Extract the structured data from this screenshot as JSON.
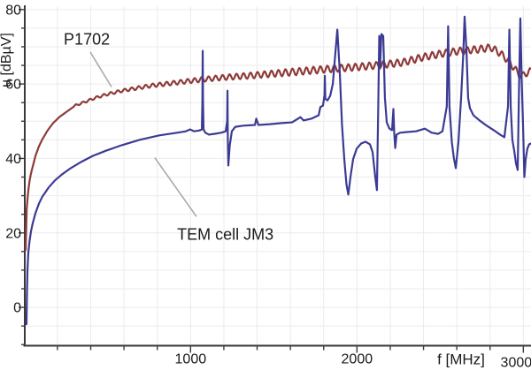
{
  "chart_data": {
    "type": "line",
    "title": "",
    "xlabel": "f [MHz]",
    "ylabel": "u [dBµV]",
    "grid": {
      "on": true,
      "x_step_mhz": 200,
      "y_step_db": 5
    },
    "x_axis": {
      "range": [
        0,
        3046
      ],
      "minor_step": 200,
      "major_ticks": [
        {
          "f": 1000,
          "label": "1000",
          "dx": 0,
          "dy": 0
        },
        {
          "f": 2000,
          "label": "2000",
          "dx": 0,
          "dy": 0
        },
        {
          "f": 3000,
          "label": "3000",
          "dx": -8,
          "dy": 4
        }
      ]
    },
    "y_axis": {
      "range": [
        -10.3,
        80.9
      ],
      "minor_step": 5,
      "major_ticks": [
        {
          "v": 0,
          "label": "0"
        },
        {
          "v": 20,
          "label": "20"
        },
        {
          "v": 40,
          "label": "40"
        },
        {
          "v": 60,
          "label": "60"
        },
        {
          "v": 80,
          "label": "80"
        }
      ]
    },
    "series": [
      {
        "name": "P1702",
        "color": "#8e3b39",
        "ripple": {
          "start_mhz": 300,
          "wavelength_mhz": 42,
          "amplitude_min_db": 0.25,
          "amplitude_max_db": 0.95,
          "ramp_mhz": 1300
        },
        "points": [
          [
            9,
            15.4
          ],
          [
            12,
            22
          ],
          [
            14,
            25.6
          ],
          [
            20,
            29.1
          ],
          [
            25,
            31.5
          ],
          [
            33,
            34.1
          ],
          [
            41,
            36
          ],
          [
            52,
            37.9
          ],
          [
            68,
            40.7
          ],
          [
            89,
            43.3
          ],
          [
            110,
            45.2
          ],
          [
            142,
            47.6
          ],
          [
            174,
            49.5
          ],
          [
            211,
            51.1
          ],
          [
            254,
            52.5
          ],
          [
            307,
            54.2
          ],
          [
            360,
            55.1
          ],
          [
            429,
            56.3
          ],
          [
            504,
            57.3
          ],
          [
            589,
            58.2
          ],
          [
            679,
            58.9
          ],
          [
            770,
            59.6
          ],
          [
            865,
            60.1
          ],
          [
            972,
            60.7
          ],
          [
            1089,
            61.3
          ],
          [
            1211,
            61.8
          ],
          [
            1344,
            62.2
          ],
          [
            1504,
            62.8
          ],
          [
            1663,
            63.4
          ],
          [
            1823,
            64
          ],
          [
            1982,
            64.5
          ],
          [
            2142,
            65.1
          ],
          [
            2275,
            65.8
          ],
          [
            2397,
            67.2
          ],
          [
            2514,
            68.2
          ],
          [
            2621,
            68.9
          ],
          [
            2727,
            69.3
          ],
          [
            2807,
            69.8
          ],
          [
            2860,
            68.3
          ],
          [
            2902,
            66.6
          ],
          [
            2940,
            64.6
          ],
          [
            2971,
            62.7
          ],
          [
            2998,
            62.2
          ],
          [
            3019,
            63
          ],
          [
            3046,
            63.4
          ]
        ]
      },
      {
        "name": "TEM cell JM3",
        "color": "#3b3b94",
        "points": [
          [
            14,
            -4.5
          ],
          [
            17,
            4.3
          ],
          [
            20,
            10.2
          ],
          [
            25,
            14.7
          ],
          [
            33,
            18
          ],
          [
            41,
            20.4
          ],
          [
            52,
            22.7
          ],
          [
            68,
            25.3
          ],
          [
            89,
            27.9
          ],
          [
            110,
            29.8
          ],
          [
            147,
            32.2
          ],
          [
            185,
            34.1
          ],
          [
            227,
            35.7
          ],
          [
            280,
            37.4
          ],
          [
            344,
            39.1
          ],
          [
            413,
            40.7
          ],
          [
            493,
            42.1
          ],
          [
            589,
            43.6
          ],
          [
            695,
            45
          ],
          [
            812,
            46.2
          ],
          [
            919,
            46.9
          ],
          [
            972,
            47.3
          ],
          [
            998,
            47.8
          ],
          [
            1020,
            47.3
          ],
          [
            1052,
            47.5
          ],
          [
            1068,
            47.8
          ],
          [
            1071,
            55
          ],
          [
            1073,
            68.9
          ],
          [
            1075,
            55
          ],
          [
            1078,
            47.8
          ],
          [
            1089,
            46.9
          ],
          [
            1110,
            46.4
          ],
          [
            1142,
            46.6
          ],
          [
            1184,
            46.9
          ],
          [
            1211,
            47.3
          ],
          [
            1220,
            50
          ],
          [
            1222,
            58.2
          ],
          [
            1224,
            45
          ],
          [
            1227,
            38.1
          ],
          [
            1235,
            43.3
          ],
          [
            1248,
            47.3
          ],
          [
            1269,
            48.5
          ],
          [
            1317,
            48.8
          ],
          [
            1387,
            49
          ],
          [
            1395,
            50.7
          ],
          [
            1408,
            49
          ],
          [
            1477,
            49.2
          ],
          [
            1546,
            49.5
          ],
          [
            1610,
            49.7
          ],
          [
            1660,
            51.1
          ],
          [
            1679,
            50.2
          ],
          [
            1727,
            50.7
          ],
          [
            1770,
            51.6
          ],
          [
            1780,
            53.8
          ],
          [
            1796,
            54.2
          ],
          [
            1805,
            57
          ],
          [
            1807,
            62.2
          ],
          [
            1810,
            56
          ],
          [
            1823,
            55.6
          ],
          [
            1839,
            56.8
          ],
          [
            1855,
            60
          ],
          [
            1866,
            66
          ],
          [
            1882,
            74.6
          ],
          [
            1897,
            63
          ],
          [
            1910,
            49.2
          ],
          [
            1924,
            39.8
          ],
          [
            1937,
            33
          ],
          [
            1948,
            30.3
          ],
          [
            1961,
            35
          ],
          [
            1977,
            39.8
          ],
          [
            1998,
            42.6
          ],
          [
            2025,
            44
          ],
          [
            2051,
            44.5
          ],
          [
            2078,
            43.8
          ],
          [
            2094,
            41.7
          ],
          [
            2110,
            35
          ],
          [
            2120,
            31.5
          ],
          [
            2128,
            54
          ],
          [
            2134,
            72.9
          ],
          [
            2139,
            64.6
          ],
          [
            2147,
            73.4
          ],
          [
            2158,
            72.9
          ],
          [
            2168,
            56.3
          ],
          [
            2179,
            49.7
          ],
          [
            2195,
            48
          ],
          [
            2211,
            47.6
          ],
          [
            2219,
            53.3
          ],
          [
            2224,
            46.9
          ],
          [
            2230,
            42.8
          ],
          [
            2238,
            46.4
          ],
          [
            2259,
            46.9
          ],
          [
            2302,
            47.1
          ],
          [
            2355,
            47.3
          ],
          [
            2408,
            48
          ],
          [
            2450,
            46.9
          ],
          [
            2488,
            46.6
          ],
          [
            2514,
            47.3
          ],
          [
            2540,
            54
          ],
          [
            2548,
            75.5
          ],
          [
            2556,
            54
          ],
          [
            2570,
            44.5
          ],
          [
            2582,
            40.2
          ],
          [
            2594,
            37.4
          ],
          [
            2610,
            44.5
          ],
          [
            2626,
            56.3
          ],
          [
            2639,
            68.2
          ],
          [
            2647,
            78.1
          ],
          [
            2658,
            69.3
          ],
          [
            2668,
            56.3
          ],
          [
            2679,
            53.5
          ],
          [
            2700,
            51.6
          ],
          [
            2737,
            50.2
          ],
          [
            2780,
            48.8
          ],
          [
            2822,
            47.6
          ],
          [
            2860,
            46.4
          ],
          [
            2886,
            45.7
          ],
          [
            2908,
            54
          ],
          [
            2916,
            74.6
          ],
          [
            2924,
            54
          ],
          [
            2934,
            45
          ],
          [
            2945,
            42.1
          ],
          [
            2956,
            38.6
          ],
          [
            2966,
            36.9
          ],
          [
            2974,
            58.7
          ],
          [
            2982,
            77.6
          ],
          [
            2990,
            61.1
          ],
          [
            2998,
            49.2
          ],
          [
            3006,
            35
          ],
          [
            3014,
            39.8
          ],
          [
            3024,
            42.6
          ],
          [
            3035,
            43.8
          ],
          [
            3046,
            44
          ]
        ]
      }
    ],
    "annotations": [
      {
        "id": "p1702",
        "text": "P1702",
        "text_f": 238,
        "text_db": 72.0,
        "line": {
          "f1": 397,
          "v1": 68.6,
          "f2": 525,
          "v2": 59.2
        }
      },
      {
        "id": "tem-cell-jm3",
        "text": "TEM cell JM3",
        "text_f": 919,
        "text_db": 19.6,
        "line": {
          "f1": 785,
          "v1": 40.2,
          "f2": 1035,
          "v2": 24.4
        }
      }
    ],
    "legend_position": "none"
  },
  "colors": {
    "background": "#ffffff",
    "grid": "#ebebeb",
    "axis": "#3a3a3a",
    "text": "#1a1a1a",
    "callout": "#a8a8a8",
    "series_red": "#8e3b39",
    "series_blue": "#3b3b94"
  }
}
